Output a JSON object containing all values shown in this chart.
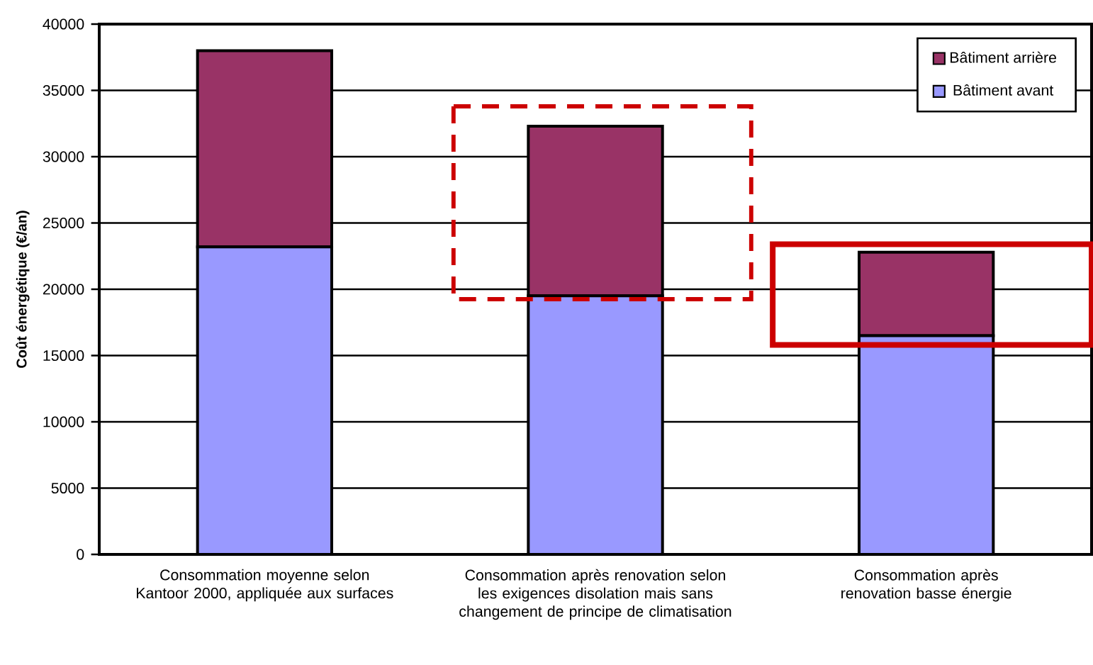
{
  "chart_data": {
    "type": "bar",
    "stacked": true,
    "ylabel": "Coût énergétique (€/an)",
    "categories": [
      "Consommation moyenne selon Kantoor 2000, appliquée aux surfaces",
      "Consommation après renovation selon les exigences disolation mais sans changement de principe de climatisation",
      "Consommation après renovation basse énergie"
    ],
    "series": [
      {
        "name": "Bâtiment avant",
        "color": "#9999ff",
        "values": [
          23200,
          19500,
          16500
        ]
      },
      {
        "name": "Bâtiment arrière",
        "color": "#993366",
        "values": [
          14800,
          12800,
          6300
        ]
      }
    ],
    "ylim": [
      0,
      40000
    ],
    "yticks": [
      0,
      5000,
      10000,
      15000,
      20000,
      25000,
      30000,
      35000,
      40000
    ],
    "grid": "y",
    "legend": "top right"
  }
}
